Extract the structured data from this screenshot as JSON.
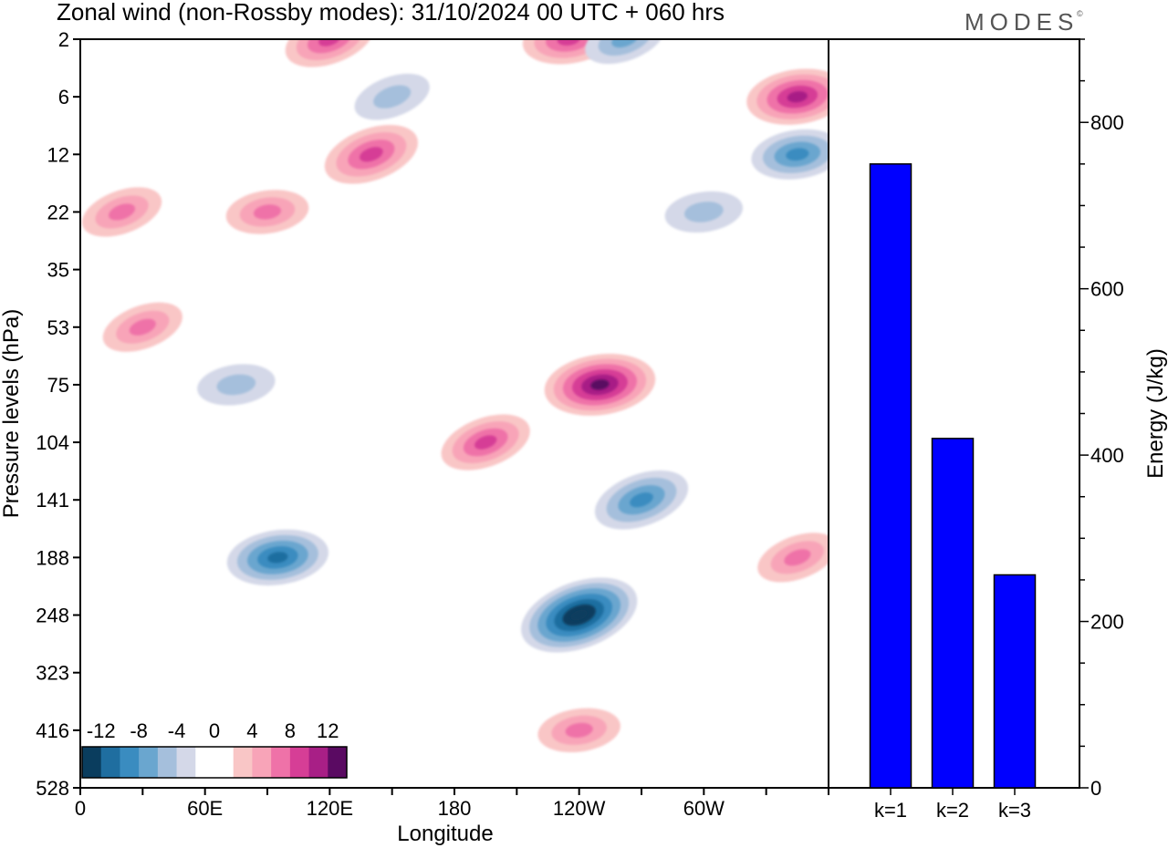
{
  "header": {
    "title": "Zonal wind (non-Rossby modes):  31/10/2024  00 UTC  + 060 hrs",
    "brand": "MODES",
    "brand_mark": "©"
  },
  "chart_data": [
    {
      "type": "heatmap",
      "title": "Zonal wind (non-Rossby modes)",
      "xlabel": "Longitude",
      "ylabel": "Pressure levels (hPa)",
      "x_ticks": [
        "0",
        "60E",
        "120E",
        "180",
        "120W",
        "60W"
      ],
      "y_levels": [
        "2",
        "6",
        "12",
        "22",
        "35",
        "53",
        "75",
        "104",
        "141",
        "188",
        "248",
        "323",
        "416",
        "528"
      ],
      "colorbar": {
        "labels": [
          "-12",
          "-8",
          "-4",
          "0",
          "4",
          "8",
          "12"
        ],
        "colors": [
          "#0a3d5e",
          "#1f6ea0",
          "#3a8cc0",
          "#6aa6cf",
          "#a5bfdc",
          "#d4d8e8",
          "#ffffff",
          "#ffffff",
          "#f9c6c6",
          "#f8a4b8",
          "#ef72a8",
          "#d63e96",
          "#a81f86",
          "#5a0a62"
        ]
      },
      "features": [
        {
          "lon": 120,
          "level": "2",
          "value": 8
        },
        {
          "lon": 235,
          "level": "2",
          "value": 8
        },
        {
          "lon": 262,
          "level": "2",
          "value": -6
        },
        {
          "lon": 345,
          "level": "6",
          "value": 10
        },
        {
          "lon": 150,
          "level": "6",
          "value": -5
        },
        {
          "lon": 345,
          "level": "12",
          "value": -8
        },
        {
          "lon": 140,
          "level": "12",
          "value": 9
        },
        {
          "lon": 90,
          "level": "22",
          "value": 6
        },
        {
          "lon": 20,
          "level": "22",
          "value": 6
        },
        {
          "lon": 300,
          "level": "22",
          "value": -5
        },
        {
          "lon": 30,
          "level": "53",
          "value": 6
        },
        {
          "lon": 75,
          "level": "75",
          "value": -5
        },
        {
          "lon": 195,
          "level": "104",
          "value": 8
        },
        {
          "lon": 250,
          "level": "75",
          "value": 12
        },
        {
          "lon": 270,
          "level": "141",
          "value": -9
        },
        {
          "lon": 95,
          "level": "188",
          "value": -10
        },
        {
          "lon": 240,
          "level": "248",
          "value": -14
        },
        {
          "lon": 240,
          "level": "416",
          "value": 6
        },
        {
          "lon": 345,
          "level": "188",
          "value": 6
        }
      ]
    },
    {
      "type": "bar",
      "categories": [
        "k=1",
        "k=2",
        "k=3"
      ],
      "values": [
        750,
        420,
        256
      ],
      "ylabel": "Energy (J/kg)",
      "ylim": [
        0,
        900
      ],
      "y_ticks": [
        0,
        200,
        400,
        600,
        800
      ],
      "bar_color": "#0000ff",
      "bar_edge": "#000000"
    }
  ]
}
